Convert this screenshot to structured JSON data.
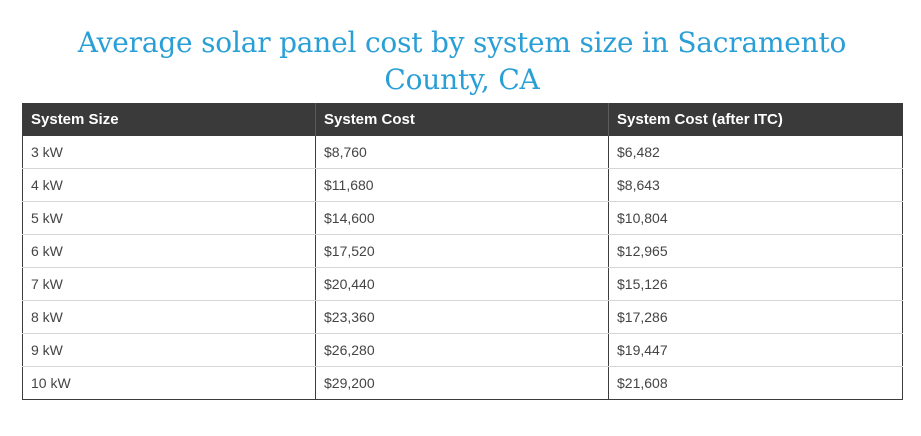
{
  "title": "Average solar panel cost by system size in Sacramento County, CA",
  "table": {
    "headers": [
      "System Size",
      "System Cost",
      "System Cost (after ITC)"
    ],
    "rows": [
      [
        "3 kW",
        "$8,760",
        "$6,482"
      ],
      [
        "4 kW",
        "$11,680",
        "$8,643"
      ],
      [
        "5 kW",
        "$14,600",
        "$10,804"
      ],
      [
        "6 kW",
        "$17,520",
        "$12,965"
      ],
      [
        "7 kW",
        "$20,440",
        "$15,126"
      ],
      [
        "8 kW",
        "$23,360",
        "$17,286"
      ],
      [
        "9 kW",
        "$26,280",
        "$19,447"
      ],
      [
        "10 kW",
        "$29,200",
        "$21,608"
      ]
    ]
  },
  "colors": {
    "title": "#2a9fd6",
    "header_bg": "#3a3a3a",
    "header_text": "#ffffff",
    "cell_text": "#444444"
  }
}
